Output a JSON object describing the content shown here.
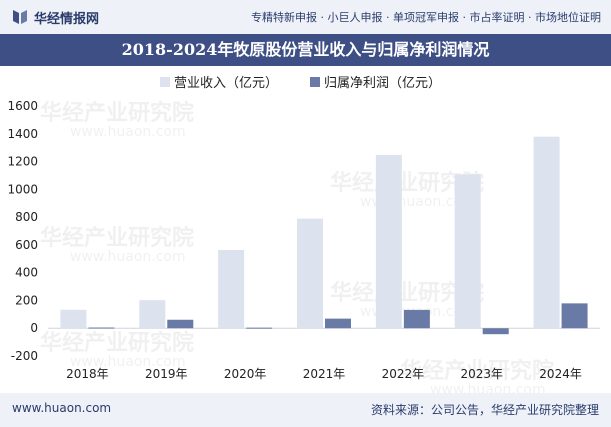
{
  "header": {
    "brand": "华经情报网",
    "services": "专精特新申报 · 小巨人申报 · 单项冠军申报 · 市占率证明 · 市场地位证明"
  },
  "footer": {
    "site": "www.huaon.com",
    "source": "资料来源：公司公告，华经产业研究院整理"
  },
  "watermark": {
    "cn": "华经产业研究院",
    "en": "www.huaon.com"
  },
  "colors": {
    "series_revenue": "#dde2ef",
    "series_profit": "#6a7aa6",
    "header_band": "#3e4f86",
    "top_band": "#eef2f8"
  },
  "chart_data": {
    "type": "bar",
    "title": "2018-2024年牧原股份营业收入与归属净利润情况",
    "categories": [
      "2018年",
      "2019年",
      "2020年",
      "2021年",
      "2022年",
      "2023年",
      "2024年"
    ],
    "series": [
      {
        "name": "营业收入（亿元）",
        "values": [
          133,
          202,
          563,
          789,
          1248,
          1108,
          1379
        ]
      },
      {
        "name": "归属净利润（亿元）",
        "values": [
          5,
          61,
          4,
          69,
          132,
          -43,
          179
        ]
      }
    ],
    "yticks": [
      "1600",
      "1400",
      "1200",
      "1000",
      "800",
      "600",
      "400",
      "200",
      "0",
      "-200"
    ],
    "ylim": [
      -200,
      1600
    ],
    "legend": "top-center",
    "grid": false
  }
}
